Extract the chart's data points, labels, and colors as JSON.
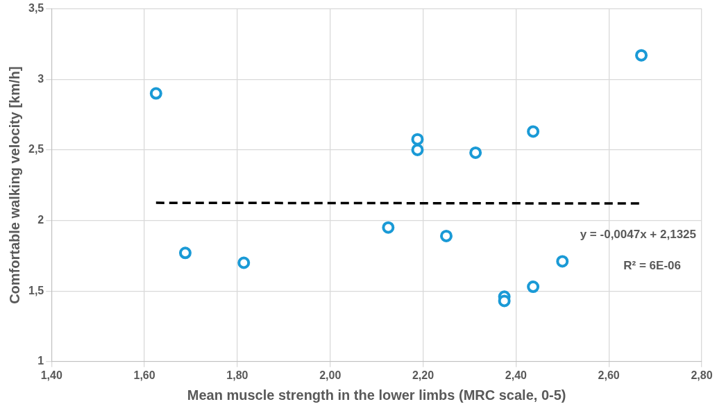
{
  "chart_data": {
    "type": "scatter",
    "xlabel": "Mean muscle strength in the lower limbs (MRC scale, 0-5)",
    "ylabel": "Comfortable walking velocity [km/h]",
    "series": [
      {
        "color": "#1a9ad6",
        "x": [
          1.625,
          1.688,
          1.814,
          2.125,
          2.188,
          2.188,
          2.25,
          2.313,
          2.375,
          2.375,
          2.437,
          2.437,
          2.5,
          2.67
        ],
        "values": [
          2.9,
          1.77,
          1.7,
          1.95,
          2.575,
          2.5,
          1.89,
          2.48,
          1.46,
          1.43,
          2.63,
          1.53,
          1.71,
          3.17
        ]
      },
      {
        "type": "line",
        "color": "#000000",
        "line_style": "dashed",
        "marker": "none",
        "x": [
          1.625,
          2.67
        ],
        "values": [
          2.125,
          2.12
        ]
      }
    ],
    "annotations": [
      "y = -0,0047x + 2,1325",
      "R² = 6E-06"
    ],
    "marker": "circle",
    "grid": true,
    "legend": false,
    "xlim": [
      1.4,
      2.8
    ],
    "xticks": [
      {
        "value": 1.4,
        "label": "1,40"
      },
      {
        "value": 1.6,
        "label": "1,60"
      },
      {
        "value": 1.8,
        "label": "1,80"
      },
      {
        "value": 2.0,
        "label": "2,00"
      },
      {
        "value": 2.2,
        "label": "2,20"
      },
      {
        "value": 2.4,
        "label": "2,40"
      },
      {
        "value": 2.6,
        "label": "2,60"
      },
      {
        "value": 2.8,
        "label": "2,80"
      }
    ],
    "ylim": [
      1,
      3.5
    ],
    "yticks": [
      1,
      {
        "value": 1.5,
        "label": "1,5"
      },
      2,
      {
        "value": 2.5,
        "label": "2,5"
      },
      3,
      {
        "value": 3.5,
        "label": "3,5"
      }
    ]
  }
}
